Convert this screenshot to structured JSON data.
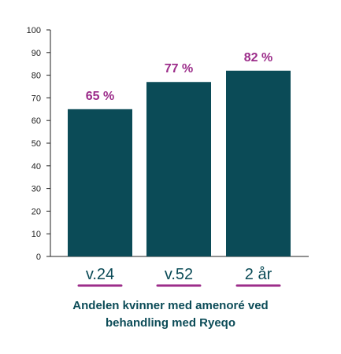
{
  "colors": {
    "bar": "#0b4b57",
    "data_label": "#9c2d8a",
    "underline": "#9c2d8a",
    "category_text": "#0b4b57",
    "caption": "#0b4b57",
    "axis": "#222222"
  },
  "caption": {
    "line1": "Andelen kvinner med amenoré ved",
    "line2": "behandling med Ryeqo"
  },
  "chart_data": {
    "type": "bar",
    "categories": [
      "v.24",
      "v.52",
      "2 år"
    ],
    "values": [
      65,
      77,
      82
    ],
    "data_labels": [
      "65 %",
      "77 %",
      "82 %"
    ],
    "ylim": [
      0,
      100
    ],
    "yticks": [
      0,
      10,
      20,
      30,
      40,
      50,
      60,
      70,
      80,
      90,
      100
    ],
    "xlabel": "",
    "ylabel": "",
    "grid": false,
    "legend": "none"
  }
}
